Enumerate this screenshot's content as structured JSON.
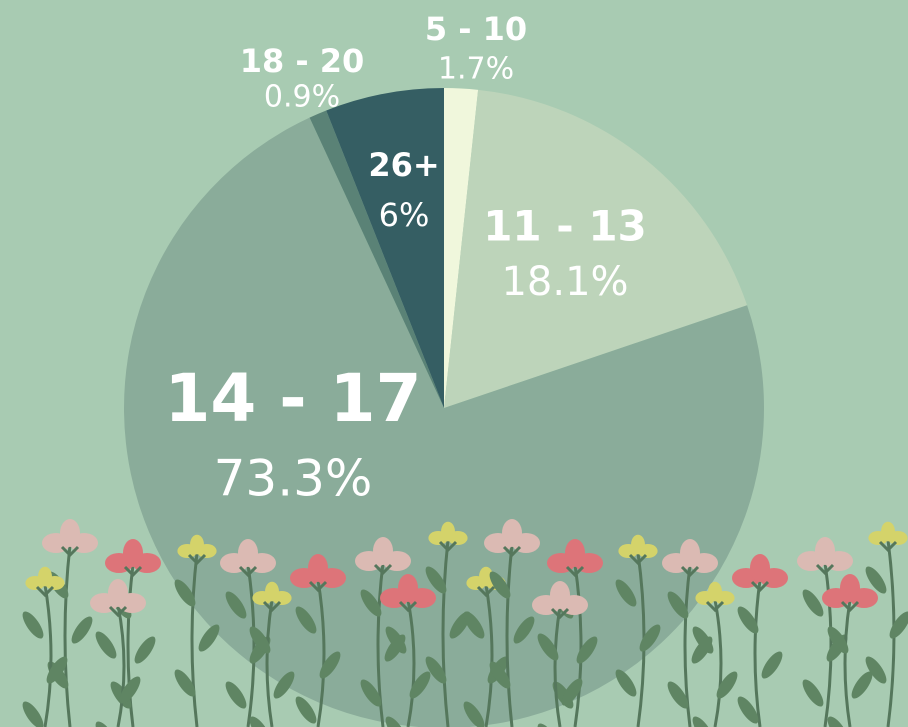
{
  "chart_data": {
    "type": "pie",
    "categories": [
      "5 - 10",
      "11 - 13",
      "14 - 17",
      "18 - 20",
      "26+"
    ],
    "values": [
      1.7,
      18.1,
      73.3,
      0.9,
      6
    ],
    "value_labels": [
      "1.7%",
      "18.1%",
      "73.3%",
      "0.9%",
      "6%"
    ],
    "colors": [
      "#f0f7dc",
      "#bdd4ba",
      "#8aac9a",
      "#5a8276",
      "#355e63"
    ]
  }
}
